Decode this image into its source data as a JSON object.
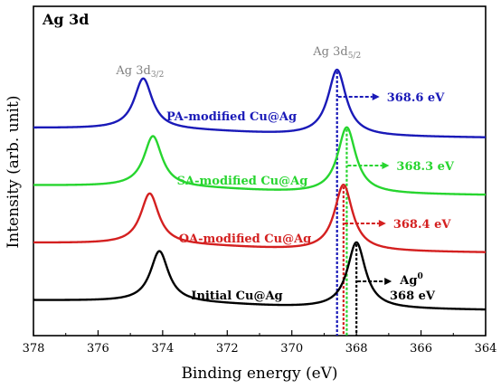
{
  "chart_data": {
    "type": "line",
    "title": "Ag 3d",
    "xlabel": "Binding energy (eV)",
    "ylabel": "Intensity (arb. unit)",
    "xlim": [
      378,
      364
    ],
    "x_reversed": true,
    "xticks": [
      378,
      376,
      374,
      372,
      370,
      368,
      366,
      364
    ],
    "yticks_shown": false,
    "grid": false,
    "legend": "none",
    "peak_labels": [
      {
        "base": "Ag 3d",
        "sub": "3/2",
        "x": 374.7,
        "color": "#808080"
      },
      {
        "base": "Ag 3d",
        "sub": "5/2",
        "x": 368.6,
        "color": "#808080"
      }
    ],
    "series": [
      {
        "label": "PA-modified Cu@Ag",
        "color": "#1a1ab8",
        "peak_3d52": 368.6,
        "peak_3d32": 374.6,
        "offset": 3,
        "annotation": {
          "text": "368.6 eV"
        }
      },
      {
        "label": "SA-modified Cu@Ag",
        "color": "#27d52f",
        "peak_3d52": 368.3,
        "peak_3d32": 374.3,
        "offset": 2,
        "annotation": {
          "text": "368.3 eV"
        }
      },
      {
        "label": "OA-modified Cu@Ag",
        "color": "#d42020",
        "peak_3d52": 368.4,
        "peak_3d32": 374.4,
        "offset": 1,
        "annotation": {
          "text": "368.4 eV"
        }
      },
      {
        "label": "Initial Cu@Ag",
        "color": "#000000",
        "peak_3d52": 368.0,
        "peak_3d32": 374.1,
        "offset": 0,
        "annotation": {
          "text_sup_base": "Ag",
          "text_sup": "0",
          "text": "368 eV"
        }
      }
    ]
  }
}
